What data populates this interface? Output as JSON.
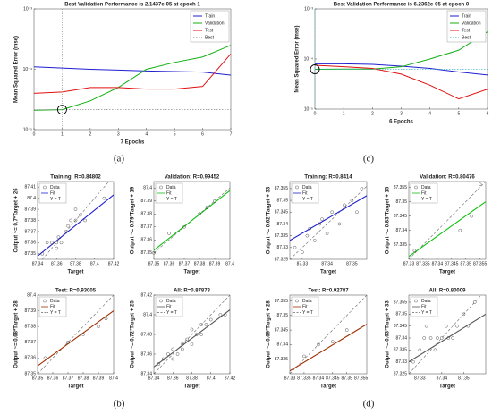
{
  "panel_labels": [
    "(a)",
    "(c)",
    "(b)",
    "(d)"
  ],
  "chart_data": [
    {
      "type": "line",
      "title": "Best Validation Performance is 2.1437e-05 at epoch 1",
      "xlabel": "7 Epochs",
      "ylabel": "Mean Squared Error (mse)",
      "ylog": true,
      "x": [
        0,
        1,
        2,
        3,
        4,
        5,
        6,
        7
      ],
      "xlim": [
        0,
        7
      ],
      "xticks": [
        0,
        1,
        2,
        3,
        4,
        5,
        6,
        7
      ],
      "ylim": [
        1e-05,
        0.001
      ],
      "yticks": [
        {
          "value": 1e-05,
          "label": "10⁻⁵"
        },
        {
          "value": 0.0001,
          "label": "10⁻⁴"
        },
        {
          "value": 0.001,
          "label": "10⁻³"
        }
      ],
      "series": [
        {
          "name": "Train",
          "color": "#1f1fd0",
          "values": [
            0.00011,
            0.000105,
            0.0001,
            9.7e-05,
            9.4e-05,
            9.2e-05,
            9e-05,
            8e-05
          ]
        },
        {
          "name": "Validation",
          "color": "#10b010",
          "values": [
            2.1e-05,
            2.1437e-05,
            3e-05,
            5e-05,
            0.0001,
            0.00013,
            0.00016,
            0.00025
          ]
        },
        {
          "name": "Test",
          "color": "#e01010",
          "values": [
            4e-05,
            4.2e-05,
            5e-05,
            5e-05,
            4.7e-05,
            4.7e-05,
            5.2e-05,
            0.00018
          ]
        }
      ],
      "best": {
        "name": "Best",
        "color": "#777777",
        "epoch": 1,
        "value": 2.1437e-05
      }
    },
    {
      "type": "line",
      "title": "Best Validation Performance is 6.2362e-05 at epoch 0",
      "xlabel": "6 Epochs",
      "ylabel": "Mean Squared Error (mse)",
      "ylog": true,
      "x": [
        0,
        1,
        2,
        3,
        4,
        5,
        6
      ],
      "xlim": [
        0,
        6
      ],
      "xticks": [
        0,
        1,
        2,
        3,
        4,
        5,
        6
      ],
      "ylim": [
        1e-05,
        0.001
      ],
      "yticks": [
        {
          "value": 1e-05,
          "label": "10⁻⁵"
        },
        {
          "value": 0.0001,
          "label": "10⁻⁴"
        },
        {
          "value": 0.001,
          "label": "10⁻³"
        }
      ],
      "series": [
        {
          "name": "Train",
          "color": "#1f1fd0",
          "values": [
            8e-05,
            8e-05,
            7.8e-05,
            7.2e-05,
            6.5e-05,
            5.5e-05,
            4.8e-05
          ]
        },
        {
          "name": "Validation",
          "color": "#10b010",
          "values": [
            6.2362e-05,
            6.3e-05,
            6.3e-05,
            7e-05,
            0.0001,
            0.00015,
            0.00035
          ]
        },
        {
          "name": "Test",
          "color": "#e01010",
          "values": [
            7.5e-05,
            7e-05,
            6.5e-05,
            5e-05,
            3e-05,
            1.6e-05,
            2.5e-05
          ]
        }
      ],
      "best": {
        "name": "Best",
        "color": "#20b0c0",
        "epoch": 0,
        "value": 6.2362e-05
      }
    },
    {
      "type": "regression",
      "title": "Training: R=0.84802",
      "xlabel": "Target",
      "ylabel": "Output ~= 0.7*Target + 26",
      "legend": [
        "Data",
        "Fit",
        "Y = T"
      ],
      "fit_color": "#1f1fd0",
      "xlim": [
        87.34,
        87.42
      ],
      "xticks": [
        87.34,
        87.36,
        87.38,
        87.4,
        87.42
      ],
      "ylim": [
        87.345,
        87.415
      ],
      "yticks": [
        87.35,
        87.36,
        87.37,
        87.38,
        87.39,
        87.4,
        87.41
      ],
      "x": [
        87.35,
        87.355,
        87.36,
        87.36,
        87.362,
        87.365,
        87.37,
        87.372,
        87.375,
        87.38,
        87.38,
        87.385,
        87.39,
        87.41,
        87.345
      ],
      "values": [
        87.36,
        87.36,
        87.355,
        87.36,
        87.365,
        87.36,
        87.37,
        87.375,
        87.38,
        87.38,
        87.39,
        87.385,
        87.38,
        87.4,
        87.35
      ],
      "fit": {
        "x": [
          87.34,
          87.42
        ],
        "y": [
          87.348,
          87.403
        ]
      }
    },
    {
      "type": "regression",
      "title": "Validation: R=0.99452",
      "xlabel": "Target",
      "ylabel": "Output ~= 0.79*Target + 19",
      "legend": [
        "Data",
        "Fit",
        "Y = T"
      ],
      "fit_color": "#10c010",
      "xlim": [
        87.35,
        87.4
      ],
      "xticks": [
        87.35,
        87.36,
        87.37,
        87.38,
        87.39,
        87.4
      ],
      "ylim": [
        87.345,
        87.405
      ],
      "yticks": [
        87.35,
        87.36,
        87.37,
        87.38,
        87.39,
        87.4
      ],
      "x": [
        87.35,
        87.36,
        87.37,
        87.38,
        87.385,
        87.39
      ],
      "values": [
        87.35,
        87.365,
        87.37,
        87.38,
        87.385,
        87.39
      ],
      "fit": {
        "x": [
          87.35,
          87.4
        ],
        "y": [
          87.352,
          87.398
        ]
      }
    },
    {
      "type": "regression",
      "title": "Test: R=0.93005",
      "xlabel": "Target",
      "ylabel": "Output ~= 0.68*Target + 28",
      "legend": [
        "Data",
        "Fit",
        "Y = T"
      ],
      "fit_color": "#a03000",
      "xlim": [
        87.35,
        87.4
      ],
      "xticks": [
        87.35,
        87.36,
        87.37,
        87.38,
        87.39,
        87.4
      ],
      "ylim": [
        87.35,
        87.4
      ],
      "yticks": [
        87.35,
        87.36,
        87.37,
        87.38,
        87.39,
        87.4
      ],
      "x": [
        87.355,
        87.37,
        87.38,
        87.39,
        87.395
      ],
      "values": [
        87.36,
        87.37,
        87.375,
        87.38,
        87.385
      ],
      "fit": {
        "x": [
          87.35,
          87.4
        ],
        "y": [
          87.355,
          87.39
        ]
      }
    },
    {
      "type": "regression",
      "title": "All: R=0.87873",
      "xlabel": "Target",
      "ylabel": "Output ~= 0.72*Target + 25",
      "legend": [
        "Data",
        "Fit",
        "Y = T"
      ],
      "fit_color": "#555555",
      "xlim": [
        87.34,
        87.42
      ],
      "xticks": [
        87.34,
        87.36,
        87.38,
        87.4,
        87.42
      ],
      "ylim": [
        87.34,
        87.42
      ],
      "yticks": [
        87.34,
        87.36,
        87.38,
        87.4,
        87.42
      ],
      "x": [
        87.345,
        87.35,
        87.355,
        87.36,
        87.36,
        87.365,
        87.37,
        87.37,
        87.375,
        87.38,
        87.38,
        87.385,
        87.39,
        87.39,
        87.395,
        87.4,
        87.41,
        87.415
      ],
      "values": [
        87.35,
        87.355,
        87.36,
        87.355,
        87.365,
        87.36,
        87.365,
        87.37,
        87.375,
        87.37,
        87.385,
        87.38,
        87.39,
        87.38,
        87.39,
        87.395,
        87.4,
        87.4
      ],
      "fit": {
        "x": [
          87.34,
          87.42
        ],
        "y": [
          87.347,
          87.405
        ]
      }
    },
    {
      "type": "regression",
      "title": "Training: R=0.8414",
      "xlabel": "Target",
      "ylabel": "Output ~= 0.62*Target + 33",
      "legend": [
        "Data",
        "Fit",
        "Y = T"
      ],
      "fit_color": "#1f1fd0",
      "xlim": [
        87.325,
        87.356
      ],
      "xticks": [
        87.33,
        87.34,
        87.35
      ],
      "ylim": [
        87.325,
        87.358
      ],
      "yticks": [
        87.325,
        87.33,
        87.335,
        87.34,
        87.345,
        87.35,
        87.355
      ],
      "x": [
        87.327,
        87.33,
        87.332,
        87.333,
        87.335,
        87.337,
        87.338,
        87.34,
        87.342,
        87.345,
        87.347,
        87.35,
        87.352,
        87.354
      ],
      "values": [
        87.33,
        87.328,
        87.335,
        87.338,
        87.333,
        87.34,
        87.342,
        87.336,
        87.345,
        87.34,
        87.348,
        87.35,
        87.345,
        87.355
      ],
      "fit": {
        "x": [
          87.325,
          87.356
        ],
        "y": [
          87.333,
          87.352
        ]
      }
    },
    {
      "type": "regression",
      "title": "Validation: R=0.80476",
      "xlabel": "Target",
      "ylabel": "Output ~= 0.83*Target + 15",
      "legend": [
        "Data",
        "Fit",
        "Y = T"
      ],
      "fit_color": "#10c010",
      "xlim": [
        87.33,
        87.357
      ],
      "xticks": [
        87.33,
        87.335,
        87.34,
        87.345,
        87.35,
        87.355
      ],
      "ylim": [
        87.33,
        87.357
      ],
      "yticks": [
        87.335,
        87.34,
        87.345,
        87.35,
        87.355
      ],
      "x": [
        87.332,
        87.348,
        87.352,
        87.355
      ],
      "values": [
        87.333,
        87.34,
        87.345,
        87.356
      ],
      "fit": {
        "x": [
          87.33,
          87.357
        ],
        "y": [
          87.331,
          87.35
        ]
      }
    },
    {
      "type": "regression",
      "title": "Test: R=0.92787",
      "xlabel": "Target",
      "ylabel": "Output ~= 0.69*Target + 28",
      "legend": [
        "Data",
        "Fit",
        "Y = T"
      ],
      "fit_color": "#a03000",
      "xlim": [
        87.33,
        87.357
      ],
      "xticks": [
        87.33,
        87.335,
        87.34,
        87.345,
        87.35,
        87.355
      ],
      "ylim": [
        87.33,
        87.357
      ],
      "yticks": [
        87.335,
        87.34,
        87.345,
        87.35,
        87.355
      ],
      "x": [
        87.335,
        87.34,
        87.345,
        87.35
      ],
      "values": [
        87.336,
        87.34,
        87.341,
        87.345
      ],
      "fit": {
        "x": [
          87.33,
          87.357
        ],
        "y": [
          87.331,
          87.347
        ]
      }
    },
    {
      "type": "regression",
      "title": "All: R=0.80009",
      "xlabel": "Target",
      "ylabel": "Output ~= 0.63*Target + 33",
      "legend": [
        "Data",
        "Fit",
        "Y = T"
      ],
      "fit_color": "#555555",
      "xlim": [
        87.325,
        87.36
      ],
      "xticks": [
        87.33,
        87.34,
        87.35
      ],
      "ylim": [
        87.325,
        87.358
      ],
      "yticks": [
        87.325,
        87.33,
        87.335,
        87.34,
        87.345,
        87.35,
        87.355
      ],
      "x": [
        87.327,
        87.33,
        87.332,
        87.335,
        87.337,
        87.34,
        87.342,
        87.345,
        87.347,
        87.35,
        87.352,
        87.355,
        87.333,
        87.338,
        87.343
      ],
      "values": [
        87.33,
        87.335,
        87.34,
        87.34,
        87.335,
        87.34,
        87.345,
        87.34,
        87.345,
        87.35,
        87.345,
        87.355,
        87.345,
        87.34,
        87.34
      ],
      "fit": {
        "x": [
          87.325,
          87.36
        ],
        "y": [
          87.33,
          87.35
        ]
      }
    }
  ]
}
